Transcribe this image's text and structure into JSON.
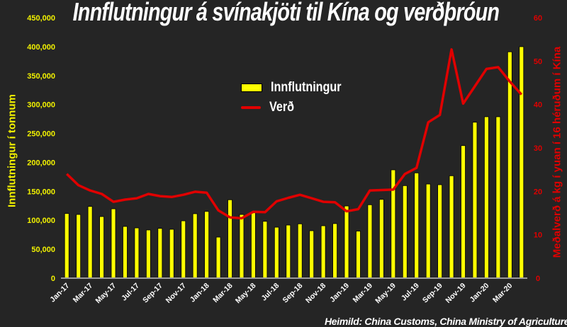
{
  "chart_data": {
    "type": "bar",
    "title": "Innflutningur á svínakjöti til Kína og verðþróun",
    "source": "Heimild: China Customs, China Ministry of Agriculture",
    "xlabel": "",
    "ylabel": "Innflutningur í tonnum",
    "ylabel_right": "Meðalverð á kg í yuan í 16 héruðum í Kína",
    "ylim": [
      0,
      450000
    ],
    "ylim_right": [
      0,
      60
    ],
    "y_ticks": [
      "0",
      "50,000",
      "100,000",
      "150,000",
      "200,000",
      "250,000",
      "300,000",
      "350,000",
      "400,000",
      "450,000"
    ],
    "y_ticks_right": [
      "0",
      "10",
      "20",
      "30",
      "40",
      "50",
      "60"
    ],
    "x_tick_labels": [
      "Jan-17",
      "Mar-17",
      "May-17",
      "Jul-17",
      "Sep-17",
      "Nov-17",
      "Jan-18",
      "Mar-18",
      "May-18",
      "Jul-18",
      "Sep-18",
      "Nov-18",
      "Jan-19",
      "Mar-19",
      "May-19",
      "Jul-19",
      "Sep-19",
      "Nov-19",
      "Jan-20",
      "Mar-20"
    ],
    "grid": false,
    "legend_position": "inside-upper-center",
    "categories": [
      "Jan-17",
      "Feb-17",
      "Mar-17",
      "Apr-17",
      "May-17",
      "Jun-17",
      "Jul-17",
      "Aug-17",
      "Sep-17",
      "Oct-17",
      "Nov-17",
      "Dec-17",
      "Jan-18",
      "Feb-18",
      "Mar-18",
      "Apr-18",
      "May-18",
      "Jun-18",
      "Jul-18",
      "Aug-18",
      "Sep-18",
      "Oct-18",
      "Nov-18",
      "Dec-18",
      "Jan-19",
      "Feb-19",
      "Mar-19",
      "Apr-19",
      "May-19",
      "Jun-19",
      "Jul-19",
      "Aug-19",
      "Sep-19",
      "Oct-19",
      "Nov-19",
      "Dec-19",
      "Jan-20",
      "Feb-20",
      "Mar-20",
      "Apr-20"
    ],
    "series": [
      {
        "name": "Innflutningur",
        "type": "bar",
        "axis": "left",
        "color": "#ffff00",
        "values": [
          111700,
          110000,
          123900,
          106400,
          119800,
          89300,
          86800,
          83200,
          86000,
          84400,
          99000,
          111300,
          115300,
          70900,
          135400,
          110000,
          112900,
          98200,
          88000,
          91700,
          93800,
          81900,
          90500,
          94200,
          124700,
          81300,
          126800,
          136100,
          187100,
          159800,
          181800,
          162600,
          161400,
          176900,
          229000,
          269400,
          278800,
          278800,
          391000,
          399900
        ]
      },
      {
        "name": "Verð",
        "type": "line",
        "axis": "right",
        "color": "#e00000",
        "values": [
          24.0,
          21.4,
          20.2,
          19.4,
          17.6,
          18.1,
          18.4,
          19.4,
          18.9,
          18.7,
          19.2,
          19.9,
          19.7,
          15.6,
          14.0,
          13.8,
          15.3,
          15.2,
          17.7,
          18.5,
          19.2,
          18.4,
          17.6,
          17.5,
          15.4,
          15.9,
          20.2,
          20.3,
          20.4,
          24.0,
          25.4,
          35.9,
          37.6,
          52.7,
          40.2,
          44.2,
          48.2,
          48.6,
          45.3,
          42.3
        ]
      }
    ]
  },
  "colors": {
    "background": "#252525",
    "bar": "#ffff00",
    "line": "#e00000",
    "left_axis_text": "#f2f200",
    "right_axis_text": "#e00000",
    "x_axis_text": "#ffffff",
    "axis_line": "#9a9a9a"
  },
  "legend": {
    "bar_label": "Innflutningur",
    "line_label": "Verð"
  }
}
